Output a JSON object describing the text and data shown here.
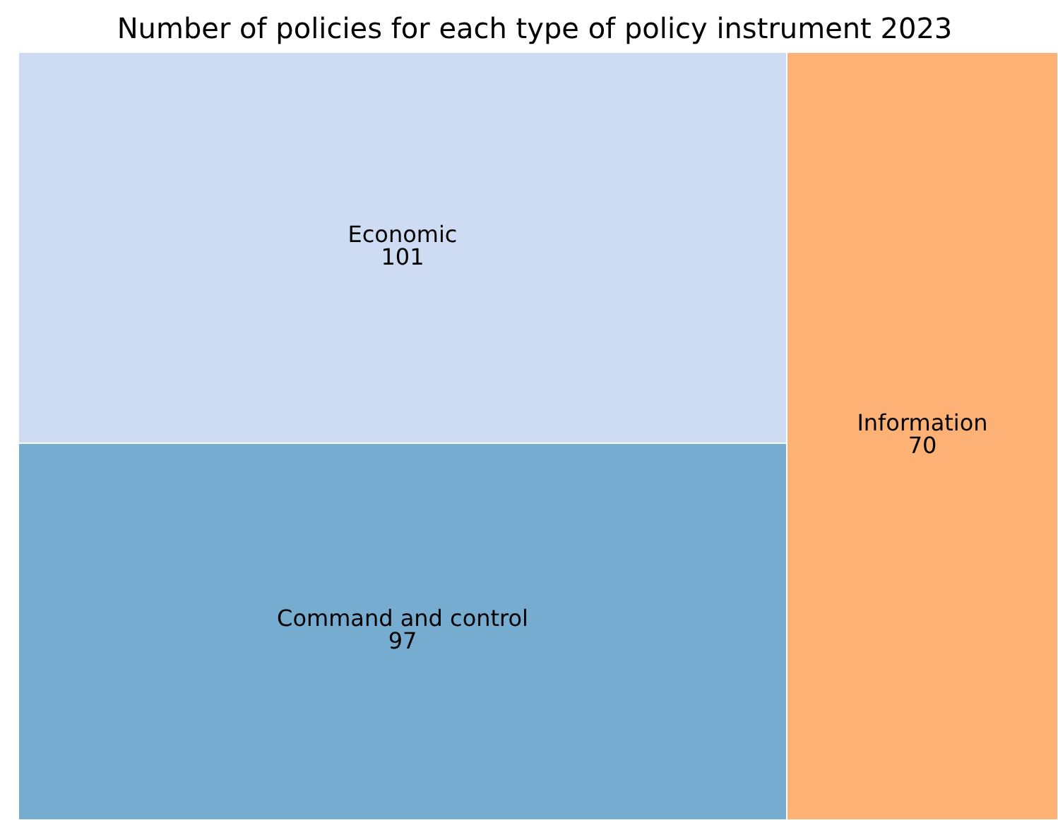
{
  "chart_data": {
    "type": "other",
    "title": "Number of policies for each type of policy instrument 2023",
    "categories": [
      "Economic",
      "Command and control",
      "Information"
    ],
    "values": [
      101,
      97,
      70
    ],
    "colors": [
      "#cddcf2",
      "#76acd0",
      "#fdb174"
    ],
    "data_labels": true
  }
}
